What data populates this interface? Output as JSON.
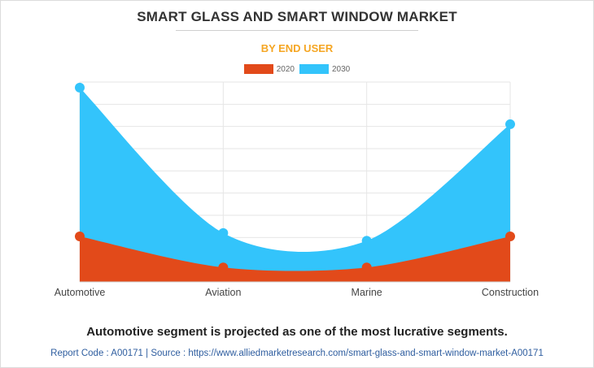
{
  "title": "SMART GLASS AND SMART WINDOW MARKET",
  "subtitle": "BY END USER",
  "colors": {
    "s2020": "#e24a1a",
    "s2030": "#33c4fb",
    "subtitle": "#f5a623"
  },
  "chart_data": {
    "type": "area",
    "categories": [
      "Automotive",
      "Aviation",
      "Marine",
      "Construction"
    ],
    "series": [
      {
        "name": "2020",
        "values": [
          20.5,
          6.5,
          6.5,
          20.5
        ]
      },
      {
        "name": "2030",
        "values": [
          87.5,
          22,
          18.5,
          71
        ]
      }
    ],
    "ylim": [
      0,
      90
    ],
    "grid": true,
    "legend": "top-center"
  },
  "conclusion": "Automotive segment is projected as one of the most lucrative segments.",
  "footer": "Report Code : A00171  |  Source : https://www.alliedmarketresearch.com/smart-glass-and-smart-window-market-A00171"
}
